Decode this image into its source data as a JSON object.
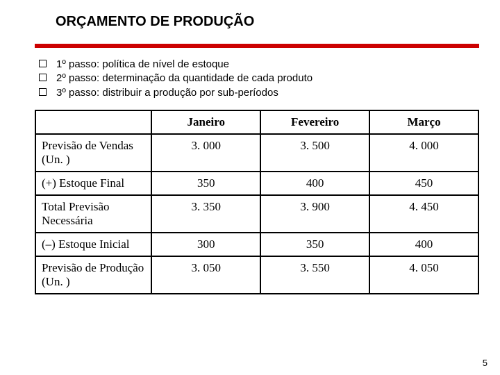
{
  "title": "ORÇAMENTO DE PRODUÇÃO",
  "bullets": [
    "1º passo: política de nível de estoque",
    "2º passo: determinação da quantidade de cada produto",
    "3º passo: distribuir a produção por sub-períodos"
  ],
  "table": {
    "columns": [
      "Janeiro",
      "Fevereiro",
      "Março"
    ],
    "rows": [
      {
        "label": "Previsão de Vendas (Un. )",
        "values": [
          "3. 000",
          "3. 500",
          "4. 000"
        ]
      },
      {
        "label": "(+) Estoque Final",
        "values": [
          "350",
          "400",
          "450"
        ]
      },
      {
        "label": "Total Previsão Necessária",
        "values": [
          "3. 350",
          "3. 900",
          "4. 450"
        ]
      },
      {
        "label": "(–) Estoque Inicial",
        "values": [
          "300",
          "350",
          "400"
        ]
      },
      {
        "label": "Previsão de Produção (Un. )",
        "values": [
          "3. 050",
          "3. 550",
          "4. 050"
        ]
      }
    ],
    "border_color": "#000000",
    "header_font": "Times New Roman",
    "header_fontsize": 17
  },
  "divider_color": "#cc0000",
  "page_number": "5"
}
